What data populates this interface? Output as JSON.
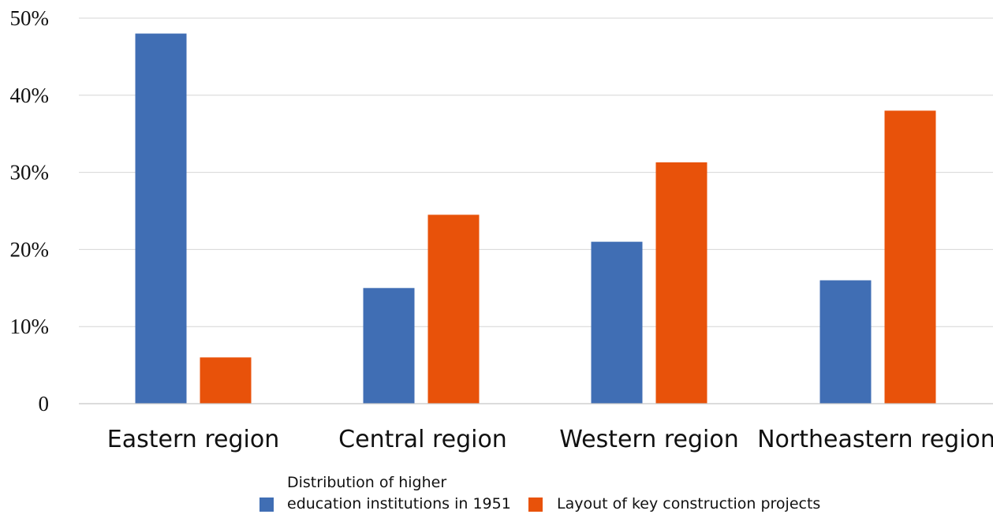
{
  "chart_data": {
    "type": "bar",
    "title": "",
    "xlabel": "",
    "ylabel": "",
    "categories": [
      "Eastern region",
      "Central region",
      "Western region",
      "Northeastern region"
    ],
    "series": [
      {
        "name": "Distribution of higher education institutions in 1951",
        "legend_lines": [
          "Distribution of higher",
          "education institutions in 1951"
        ],
        "color": "#406EB4",
        "values": [
          48,
          15,
          21,
          16
        ]
      },
      {
        "name": "Layout of key construction projects",
        "legend_lines": [
          "Layout of key construction projects"
        ],
        "color": "#E8520A",
        "values": [
          6,
          24.5,
          31.3,
          38
        ]
      }
    ],
    "ylim": [
      0,
      50
    ],
    "yticks": [
      {
        "value": 0,
        "label": "0"
      },
      {
        "value": 10,
        "label": "10%"
      },
      {
        "value": 20,
        "label": "20%"
      },
      {
        "value": 30,
        "label": "30%"
      },
      {
        "value": 40,
        "label": "40%"
      },
      {
        "value": 50,
        "label": "50%"
      }
    ],
    "grid": true,
    "legend_position": "bottom"
  }
}
